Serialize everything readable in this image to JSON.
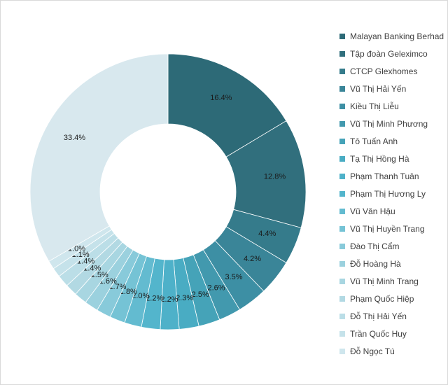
{
  "chart_data": {
    "type": "donut",
    "title": "",
    "legend_position": "right",
    "series": [
      {
        "values": [
          16.4,
          12.8,
          4.4,
          4.2,
          3.5,
          2.6,
          2.5,
          2.3,
          2.2,
          2.2,
          2.0,
          1.8,
          1.7,
          1.6,
          1.5,
          1.4,
          1.4,
          1.1,
          1.0,
          33.4
        ]
      }
    ],
    "categories": [
      "Malayan Banking Berhad",
      "Tập đoàn Geleximco",
      "CTCP Glexhomes",
      "Vũ Thị Hải Yến",
      "Kiều Thị Liễu",
      "Vũ Thị Minh Phương",
      "Tô Tuấn Anh",
      "Tạ Thị Hồng Hà",
      "Phạm Thanh Tuân",
      "Phạm Thị Hương Ly",
      "Vũ Văn Hậu",
      "Vũ Thị Huyền Trang",
      "Đào Thị Cẩm",
      "Đỗ Hoàng Hà",
      "Vũ Thị Minh Trang",
      "Phạm Quốc Hiệp",
      "Đỗ Thị Hải Yến",
      "Trần Quốc Huy",
      "Đỗ Ngọc Tú",
      ""
    ],
    "data_labels": [
      "16.4%",
      "12.8%",
      "4.4%",
      "4.2%",
      "3.5%",
      "2.6%",
      "2.5%",
      "2.3%",
      "2.2%",
      "2.2%",
      "2.0%",
      "1.8%",
      "1.7%",
      "1.6%",
      "1.5%",
      "1.4%",
      "1.4%",
      "1.1%",
      "1.0%",
      "33.4%"
    ],
    "colors": [
      "#2d6a77",
      "#316f7d",
      "#357b8b",
      "#3a8598",
      "#3d8fa4",
      "#4299ae",
      "#45a3b8",
      "#49acc3",
      "#4eb1c9",
      "#53b5cc",
      "#63bbd0",
      "#75c3d5",
      "#88cada",
      "#9bd1de",
      "#a8d6e1",
      "#b2d9e3",
      "#bbdee7",
      "#c5e2ea",
      "#cfe6ed",
      "#d8e8ee"
    ]
  }
}
